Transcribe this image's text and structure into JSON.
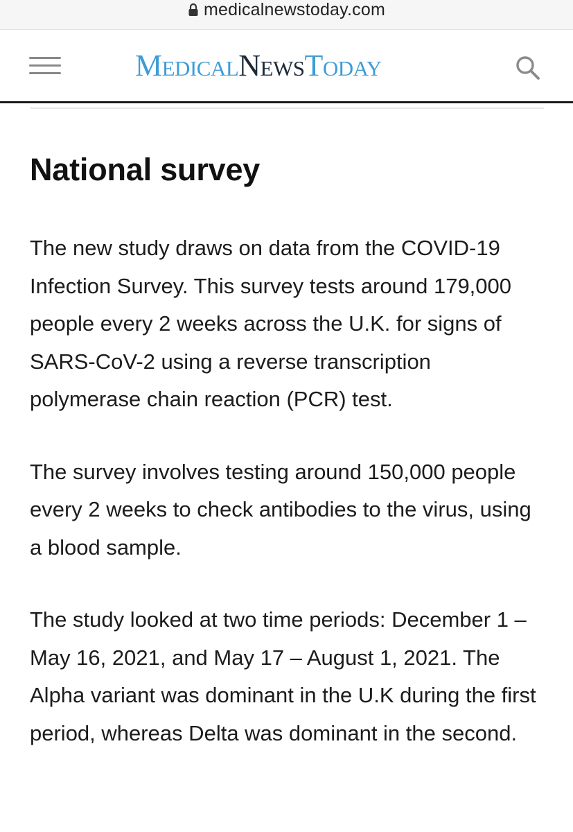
{
  "browser": {
    "url": "medicalnewstoday.com",
    "lock_icon": "lock-icon"
  },
  "header": {
    "menu_icon": "hamburger-menu-icon",
    "logo": {
      "part1": "Medical",
      "part2": "News",
      "part3": "Today"
    },
    "search_icon": "search-icon",
    "colors": {
      "logo_blue": "#3e9cd6",
      "logo_dark": "#1d2a3a"
    }
  },
  "article": {
    "section_heading": "National survey",
    "paragraphs": [
      "The new study draws on data from the COVID-19 Infection Survey. This survey tests around 179,000 people every 2 weeks across the U.K. for signs of SARS-CoV-2 using a reverse transcription polymerase chain reaction (PCR) test.",
      "The survey involves testing around 150,000 people every 2 weeks to check antibodies to the virus, using a blood sample.",
      "The study looked at two time periods: December 1 – May 16, 2021, and May 17 – August 1, 2021. The Alpha variant was dominant in the U.K during the first period, whereas Delta was dominant in the second."
    ]
  }
}
